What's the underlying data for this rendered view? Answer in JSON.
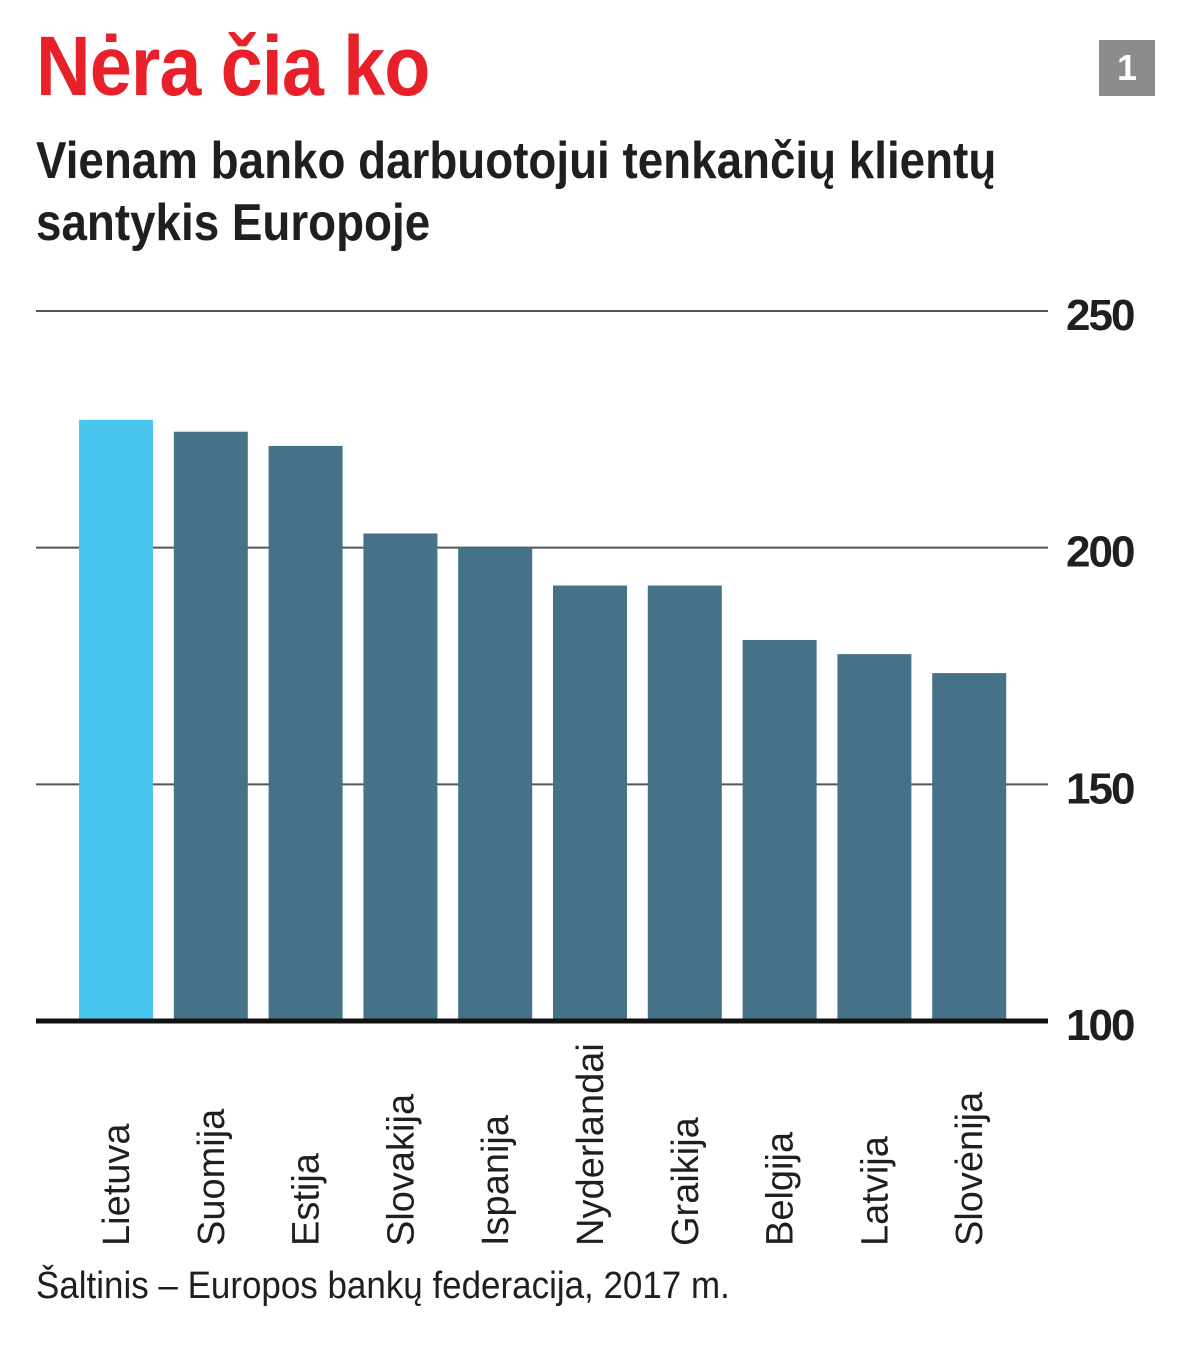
{
  "headline": "Nėra čia ko",
  "badge": "1",
  "subtitle": "Vienam banko darbuotojui tenkančių klientų santykis Europoje",
  "source": "Šaltinis – Europos bankų federacija, 2017 m.",
  "colors": {
    "headline": "#e8202a",
    "highlight_bar": "#48c6f0",
    "bar": "#457289",
    "badge": "#8c8c8c",
    "text": "#1f1f1f"
  },
  "chart_data": {
    "type": "bar",
    "title": "Vienam banko darbuotojui tenkančių klientų santykis Europoje",
    "categories": [
      "Lietuva",
      "Suomija",
      "Estija",
      "Slovakija",
      "Ispanija",
      "Nyderlandai",
      "Graikija",
      "Belgija",
      "Latvija",
      "Slovėnija"
    ],
    "values": [
      227,
      224.5,
      221.5,
      203,
      200,
      192,
      192,
      180.5,
      177.5,
      173.5
    ],
    "highlight": "Lietuva",
    "ylim": [
      100,
      250
    ],
    "yticks": [
      100,
      150,
      200,
      250
    ],
    "axis_side": "right",
    "grid": true,
    "xlabel": "",
    "ylabel": ""
  }
}
